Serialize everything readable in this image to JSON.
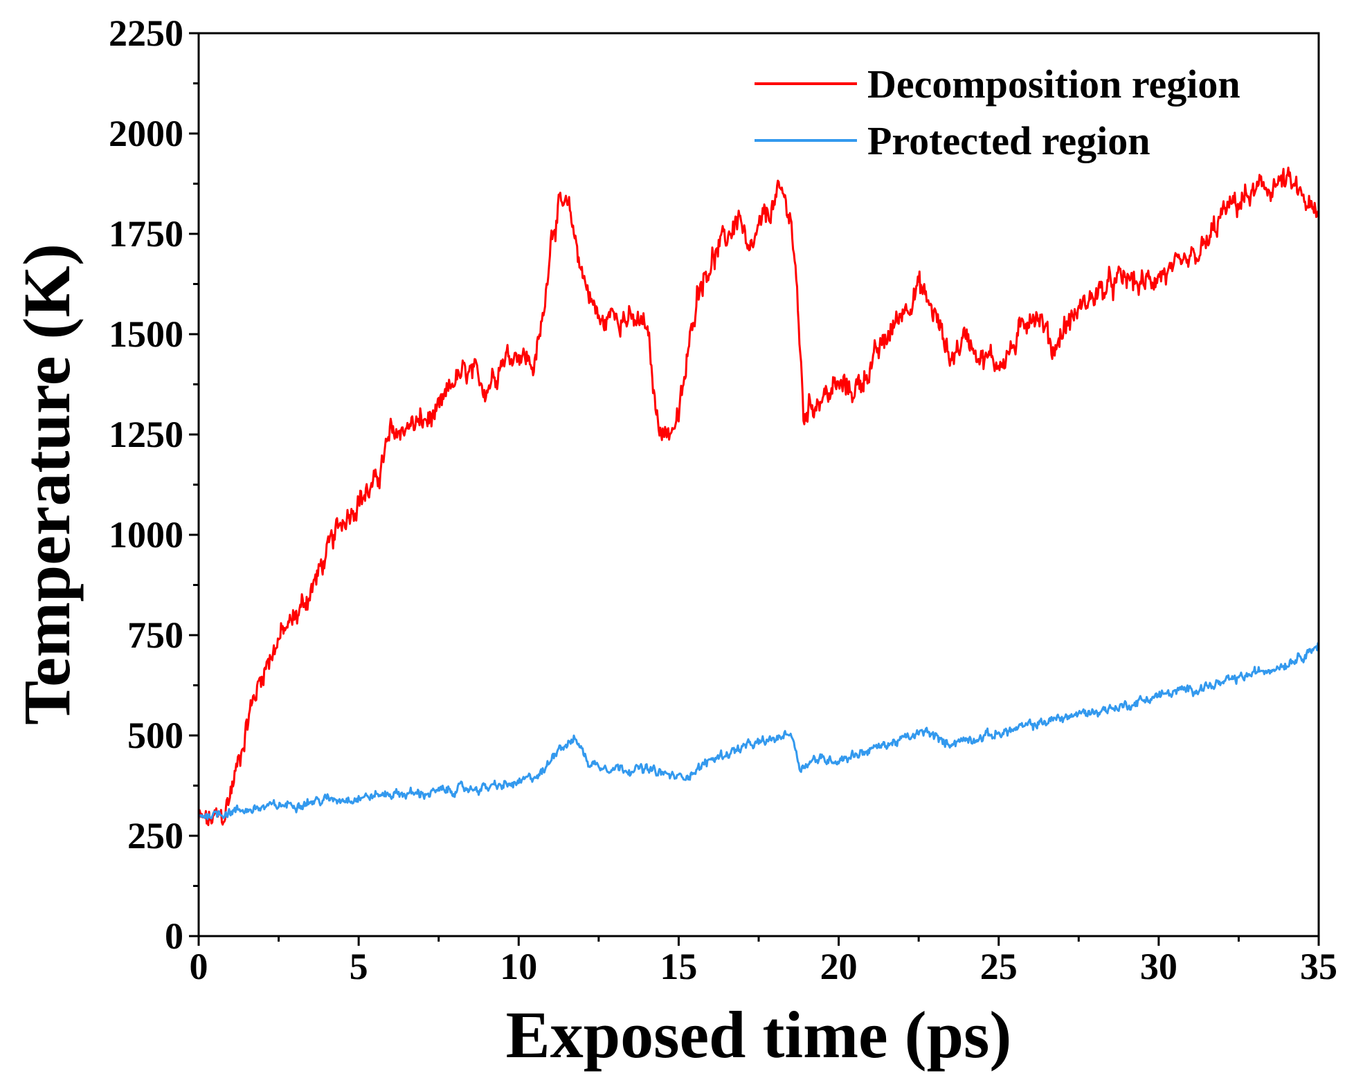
{
  "chart_data": {
    "type": "line",
    "title": "",
    "xlabel": "Exposed time (ps)",
    "ylabel": "Temperature (K)",
    "xlim": [
      0,
      35
    ],
    "ylim": [
      0,
      2250
    ],
    "xticks": [
      0,
      5,
      10,
      15,
      20,
      25,
      30,
      35
    ],
    "xtick_labels": [
      "0",
      "5",
      "10",
      "15",
      "20",
      "25",
      "30",
      "35"
    ],
    "yticks": [
      0,
      250,
      500,
      750,
      1000,
      1250,
      1500,
      1750,
      2000,
      2250
    ],
    "ytick_labels": [
      "0",
      "250",
      "500",
      "750",
      "1000",
      "1250",
      "1500",
      "1750",
      "2000",
      "2250"
    ],
    "grid": false,
    "legend_position": "top-right",
    "series": [
      {
        "name": "Decomposition region",
        "color": "#ff0000",
        "x": [
          0,
          0.3,
          0.8,
          1.2,
          1.6,
          2.0,
          2.5,
          3.0,
          3.5,
          4.0,
          4.5,
          5.0,
          5.5,
          6.0,
          6.5,
          7.0,
          7.5,
          8.0,
          8.5,
          9.0,
          9.5,
          10.0,
          10.5,
          10.8,
          11.0,
          11.3,
          11.6,
          12.0,
          12.3,
          12.6,
          13.0,
          13.5,
          14.0,
          14.3,
          14.6,
          15.0,
          15.3,
          15.6,
          16.0,
          16.5,
          16.9,
          17.2,
          17.5,
          18.0,
          18.2,
          18.5,
          18.7,
          18.9,
          19.2,
          20.0,
          20.5,
          21.0,
          21.5,
          22.0,
          22.5,
          23.0,
          23.5,
          24.0,
          24.5,
          25.0,
          25.5,
          26.0,
          26.3,
          26.7,
          27.0,
          27.5,
          28.0,
          28.5,
          29.0,
          29.5,
          30.0,
          30.5,
          31.0,
          31.5,
          32.0,
          32.5,
          33.0,
          33.5,
          34.0,
          34.5,
          35.0
        ],
        "values": [
          290,
          285,
          300,
          420,
          560,
          660,
          740,
          790,
          860,
          950,
          1040,
          1090,
          1120,
          1250,
          1270,
          1280,
          1300,
          1390,
          1400,
          1370,
          1440,
          1460,
          1420,
          1560,
          1750,
          1820,
          1800,
          1650,
          1580,
          1520,
          1560,
          1530,
          1520,
          1300,
          1250,
          1290,
          1450,
          1620,
          1680,
          1740,
          1800,
          1680,
          1760,
          1830,
          1850,
          1800,
          1600,
          1300,
          1330,
          1370,
          1360,
          1420,
          1490,
          1560,
          1620,
          1550,
          1440,
          1500,
          1440,
          1430,
          1470,
          1560,
          1540,
          1460,
          1510,
          1560,
          1600,
          1620,
          1640,
          1620,
          1650,
          1650,
          1680,
          1720,
          1800,
          1830,
          1850,
          1870,
          1880,
          1840,
          1780
        ]
      },
      {
        "name": "Protected region",
        "color": "#3399ee",
        "x": [
          0,
          1,
          2,
          3,
          4,
          5,
          6,
          7,
          8,
          9,
          10,
          10.8,
          11.2,
          11.8,
          12.2,
          13,
          14,
          15,
          15.5,
          16,
          17,
          18,
          18.5,
          18.8,
          19.2,
          20,
          21,
          22,
          22.8,
          23.3,
          24,
          25,
          26,
          27,
          28,
          29,
          30,
          31,
          32,
          33,
          34,
          35
        ],
        "values": [
          300,
          310,
          320,
          330,
          340,
          345,
          355,
          355,
          365,
          370,
          380,
          410,
          470,
          490,
          430,
          420,
          415,
          395,
          410,
          440,
          470,
          490,
          510,
          420,
          440,
          440,
          465,
          490,
          510,
          480,
          490,
          505,
          525,
          545,
          560,
          575,
          600,
          615,
          630,
          655,
          680,
          725
        ]
      }
    ]
  }
}
